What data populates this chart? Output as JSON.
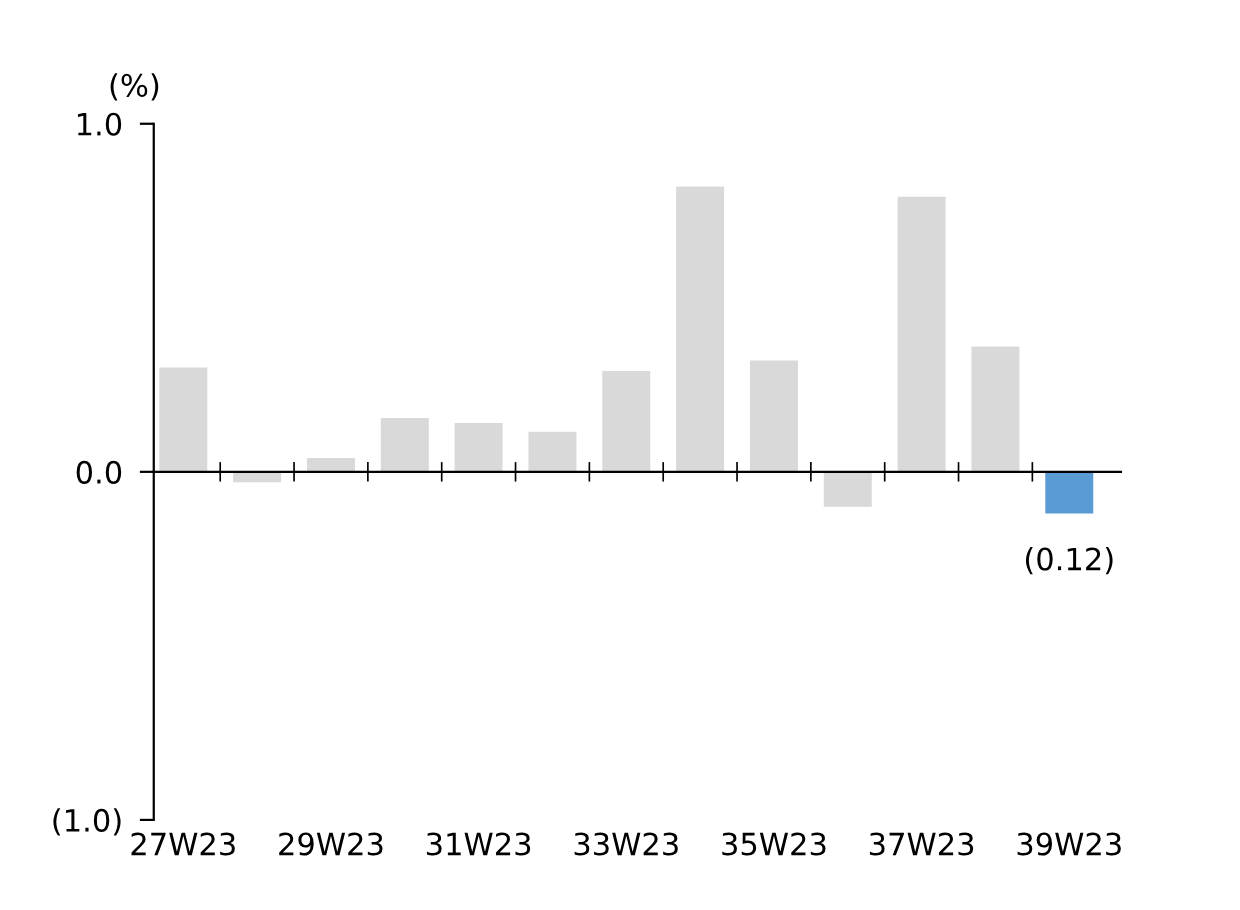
{
  "chart_data": {
    "type": "bar",
    "ylabel": "(%)",
    "categories": [
      "27W23",
      null,
      "29W23",
      null,
      "31W23",
      null,
      "33W23",
      null,
      "35W23",
      null,
      "37W23",
      null,
      "39W23"
    ],
    "values": [
      0.3,
      -0.03,
      0.04,
      0.155,
      0.14,
      0.115,
      0.29,
      0.82,
      0.32,
      -0.1,
      0.79,
      0.36,
      -0.12
    ],
    "colors": [
      "#d9d9d9",
      "#d9d9d9",
      "#d9d9d9",
      "#d9d9d9",
      "#d9d9d9",
      "#d9d9d9",
      "#d9d9d9",
      "#d9d9d9",
      "#d9d9d9",
      "#d9d9d9",
      "#d9d9d9",
      "#d9d9d9",
      "#5b9bd5"
    ],
    "value_labels": [
      null,
      null,
      null,
      null,
      null,
      null,
      null,
      null,
      null,
      null,
      null,
      null,
      "(0.12)"
    ],
    "ylim": [
      -1.0,
      1.0
    ],
    "yticks": [
      {
        "value": -1.0,
        "label": "(1.0)"
      },
      {
        "value": 0.0,
        "label": "0.0"
      },
      {
        "value": 1.0,
        "label": "1.0"
      }
    ],
    "legend": false
  }
}
